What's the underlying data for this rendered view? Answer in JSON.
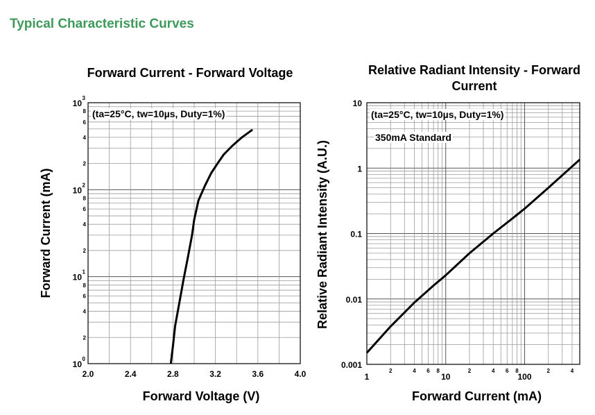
{
  "page_heading": "Typical Characteristic Curves",
  "colors": {
    "heading": "#3e9a5a",
    "grid": "#9a9a9a",
    "curve": "#000000"
  },
  "chart_data": [
    {
      "type": "line",
      "title": "Forward Current - Forward Voltage",
      "xlabel": "Forward Voltage (V)",
      "ylabel": "Forward Current (mA)",
      "annotation": "(ta=25°C, tw=10µs, Duty=1%)",
      "x_scale": "linear",
      "y_scale": "log",
      "xlim": [
        2.0,
        4.0
      ],
      "ylim": [
        1,
        1000
      ],
      "grid": true,
      "x_ticks": [
        "2.0",
        "2.4",
        "2.8",
        "3.2",
        "3.6",
        "4.0"
      ],
      "y_decades": [
        {
          "base": "10",
          "exp": "0"
        },
        {
          "base": "10",
          "exp": "1"
        },
        {
          "base": "10",
          "exp": "2"
        },
        {
          "base": "10",
          "exp": "3"
        }
      ],
      "y_minor_labels": [
        "2",
        "4",
        "6",
        "8"
      ],
      "series": [
        {
          "x": [
            2.78,
            2.8,
            2.82,
            2.86,
            2.9,
            2.94,
            2.98,
            3.0,
            3.04,
            3.1,
            3.16,
            3.22,
            3.28,
            3.36,
            3.45,
            3.55
          ],
          "y": [
            1,
            1.6,
            2.7,
            5,
            9.3,
            16.5,
            30,
            45,
            75,
            110,
            155,
            200,
            255,
            320,
            400,
            490
          ]
        }
      ]
    },
    {
      "type": "line",
      "title": "Relative Radiant Intensity - Forward Current",
      "xlabel": "Forward Current (mA)",
      "ylabel": "Relative Radiant Intensity (A.U.)",
      "annotation": "(ta=25°C, tw=10µs, Duty=1%)",
      "annotation2": "350mA Standard",
      "x_scale": "log",
      "y_scale": "log",
      "xlim": [
        1,
        500
      ],
      "ylim": [
        0.001,
        10
      ],
      "grid": true,
      "x_major_labels": [
        "1",
        "10",
        "100"
      ],
      "x_minor_labels": [
        "2",
        "4",
        "6",
        "8"
      ],
      "y_ticks": [
        "0.001",
        "0.01",
        "0.1",
        "1",
        "10"
      ],
      "series": [
        {
          "x": [
            1,
            2,
            4,
            7,
            10,
            20,
            40,
            70,
            100,
            200,
            500
          ],
          "y": [
            0.0015,
            0.0038,
            0.0088,
            0.016,
            0.023,
            0.05,
            0.1,
            0.17,
            0.24,
            0.5,
            1.35
          ]
        }
      ]
    }
  ]
}
